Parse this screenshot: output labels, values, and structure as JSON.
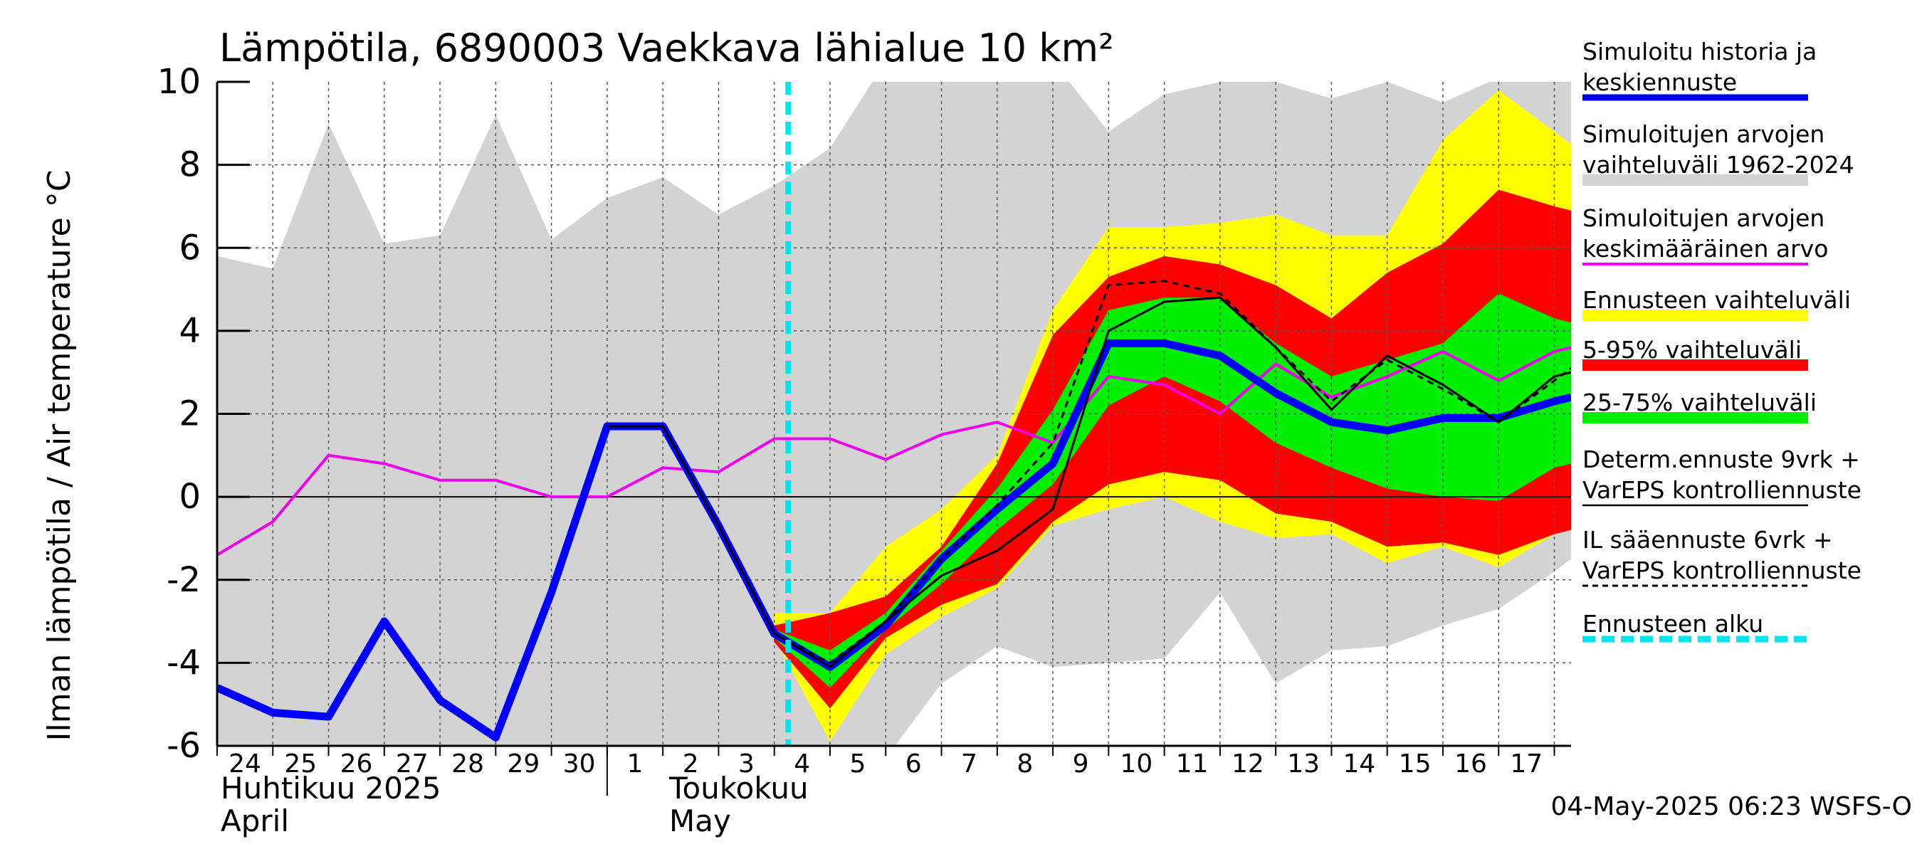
{
  "chart_data": {
    "type": "area",
    "title": "Lämpötila, 6890003 Vaekkava lähialue 10 km²",
    "ylabel": "Ilman lämpötila / Air temperature   °C",
    "ylim": [
      -6,
      10
    ],
    "yticks": [
      -6,
      -4,
      -2,
      0,
      2,
      4,
      6,
      8,
      10
    ],
    "xlim": [
      0,
      24.3
    ],
    "x_day_labels": [
      "24",
      "25",
      "26",
      "27",
      "28",
      "29",
      "30",
      "1",
      "2",
      "3",
      "4",
      "5",
      "6",
      "7",
      "8",
      "9",
      "10",
      "11",
      "12",
      "13",
      "14",
      "15",
      "16",
      "17"
    ],
    "month_labels": {
      "april_fi": "Huhtikuu  2025",
      "april_en": "April",
      "may_fi": "Toukokuu",
      "may_en": "May"
    },
    "forecast_start_x": 10.25,
    "footer": "04-May-2025 06:23 WSFS-O",
    "colors": {
      "history_band": "#d3d3d3",
      "forecast_range": "#ffff00",
      "p5_95": "#ff0000",
      "p25_75": "#00ee00",
      "median": "#0000ff",
      "mean": "#ee00ee",
      "determ": "#000000",
      "forecast_start": "#00e5ee"
    },
    "legend": [
      {
        "label": "Simuloitu historia ja keskiennuste",
        "lines": [
          "Simuloitu historia ja",
          "keskiennuste"
        ],
        "style": "line",
        "color": "#0000ff"
      },
      {
        "label": "Simuloitujen arvojen vaihteluväli 1962-2024",
        "lines": [
          "Simuloitujen arvojen",
          "vaihteluväli 1962-2024"
        ],
        "style": "band",
        "color": "#d3d3d3"
      },
      {
        "label": "Simuloitujen arvojen keskimääräinen arvo",
        "lines": [
          "Simuloitujen arvojen",
          "keskimääräinen arvo"
        ],
        "style": "line",
        "color": "#ee00ee"
      },
      {
        "label": "Ennusteen vaihteluväli",
        "lines": [
          "Ennusteen vaihteluväli"
        ],
        "style": "band",
        "color": "#ffff00"
      },
      {
        "label": "5-95% vaihteluväli",
        "lines": [
          "5-95% vaihteluväli"
        ],
        "style": "band",
        "color": "#ff0000"
      },
      {
        "label": "25-75% vaihteluväli",
        "lines": [
          "25-75% vaihteluväli"
        ],
        "style": "band",
        "color": "#00ee00"
      },
      {
        "label": "Determ.ennuste 9vrk + VarEPS kontrolliennuste",
        "lines": [
          "Determ.ennuste 9vrk +",
          "VarEPS kontrolliennuste"
        ],
        "style": "thinline",
        "color": "#000000"
      },
      {
        "label": "IL sääennuste 6vrk + VarEPS kontrolliennuste",
        "lines": [
          "IL sääennuste 6vrk  +",
          "  VarEPS kontrolliennuste"
        ],
        "style": "dashed",
        "color": "#000000"
      },
      {
        "label": "Ennusteen alku",
        "lines": [
          "Ennusteen alku"
        ],
        "style": "cyan-dashed",
        "color": "#00e5ee"
      }
    ],
    "series": [
      {
        "name": "history_band",
        "x": [
          0,
          1,
          2,
          3,
          4,
          5,
          6,
          7,
          8,
          9,
          10,
          11,
          12,
          13,
          14,
          15,
          16,
          17,
          18,
          19,
          20,
          21,
          22,
          23,
          24,
          24.3
        ],
        "upper": [
          5.8,
          5.5,
          9.0,
          6.1,
          6.3,
          9.2,
          6.2,
          7.2,
          7.7,
          6.8,
          7.5,
          8.4,
          10.5,
          10.5,
          10.5,
          10.5,
          8.8,
          9.7,
          10.0,
          10.0,
          9.6,
          10.0,
          9.5,
          10.1,
          10.4,
          10.3
        ],
        "lower": [
          -6.3,
          -6.3,
          -6.3,
          -6.3,
          -6.3,
          -6.3,
          -6.3,
          -6.3,
          -6.3,
          -6.3,
          -6.3,
          -6.3,
          -6.3,
          -4.5,
          -3.6,
          -4.1,
          -4.0,
          -3.9,
          -2.3,
          -4.5,
          -3.7,
          -3.6,
          -3.1,
          -2.7,
          -1.8,
          -1.5
        ]
      },
      {
        "name": "forecast_range",
        "x": [
          10,
          11,
          12,
          13,
          14,
          15,
          16,
          17,
          18,
          19,
          20,
          21,
          22,
          23,
          24,
          24.3
        ],
        "upper": [
          -2.8,
          -2.8,
          -1.2,
          -0.3,
          1.0,
          4.5,
          6.5,
          6.5,
          6.6,
          6.8,
          6.3,
          6.3,
          8.6,
          9.8,
          8.8,
          8.5
        ],
        "lower": [
          -3.4,
          -5.9,
          -3.8,
          -2.9,
          -2.2,
          -0.7,
          -0.3,
          0.0,
          -0.6,
          -1.0,
          -0.9,
          -1.6,
          -1.2,
          -1.7,
          -0.9,
          -0.8
        ]
      },
      {
        "name": "p5_95",
        "x": [
          10,
          11,
          12,
          13,
          14,
          15,
          16,
          17,
          18,
          19,
          20,
          21,
          22,
          23,
          24,
          24.3
        ],
        "upper": [
          -3.1,
          -2.8,
          -2.4,
          -1.2,
          0.8,
          3.9,
          5.3,
          5.8,
          5.6,
          5.1,
          4.3,
          5.4,
          6.1,
          7.4,
          7.0,
          6.9
        ],
        "lower": [
          -3.5,
          -5.1,
          -3.4,
          -2.6,
          -2.1,
          -0.6,
          0.3,
          0.6,
          0.4,
          -0.4,
          -0.6,
          -1.2,
          -1.1,
          -1.4,
          -0.9,
          -0.8
        ]
      },
      {
        "name": "p25_75",
        "x": [
          10,
          11,
          12,
          13,
          14,
          15,
          16,
          17,
          18,
          19,
          20,
          21,
          22,
          23,
          24,
          24.3
        ],
        "upper": [
          -3.2,
          -3.7,
          -2.8,
          -1.3,
          0.2,
          2.1,
          4.5,
          4.8,
          4.8,
          3.7,
          2.9,
          3.3,
          3.7,
          4.9,
          4.3,
          4.2
        ],
        "lower": [
          -3.4,
          -4.6,
          -3.2,
          -2.1,
          -0.8,
          0.3,
          2.2,
          2.9,
          2.3,
          1.3,
          0.7,
          0.2,
          0.0,
          -0.1,
          0.7,
          0.8
        ]
      },
      {
        "name": "mean",
        "x": [
          0,
          1,
          2,
          3,
          4,
          5,
          6,
          7,
          8,
          9,
          10,
          11,
          12,
          13,
          14,
          15,
          16,
          17,
          18,
          19,
          20,
          21,
          22,
          23,
          24,
          24.3
        ],
        "values": [
          -1.4,
          -0.6,
          1.0,
          0.8,
          0.4,
          0.4,
          0.0,
          0.0,
          0.7,
          0.6,
          1.4,
          1.4,
          0.9,
          1.5,
          1.8,
          1.3,
          2.9,
          2.7,
          2.0,
          3.2,
          2.4,
          2.9,
          3.5,
          2.8,
          3.5,
          3.6
        ]
      },
      {
        "name": "median",
        "x": [
          0,
          1,
          2,
          3,
          4,
          5,
          6,
          7,
          8,
          9,
          10,
          11,
          12,
          13,
          14,
          15,
          16,
          17,
          18,
          19,
          20,
          21,
          22,
          23,
          24,
          24.3
        ],
        "values": [
          -4.6,
          -5.2,
          -5.3,
          -3.0,
          -4.9,
          -5.8,
          -2.3,
          1.7,
          1.7,
          -0.7,
          -3.3,
          -4.1,
          -3.1,
          -1.5,
          -0.3,
          0.8,
          3.7,
          3.7,
          3.4,
          2.5,
          1.8,
          1.6,
          1.9,
          1.9,
          2.3,
          2.4
        ]
      },
      {
        "name": "determ",
        "x": [
          7,
          8,
          9,
          10,
          11,
          12,
          13,
          14,
          15,
          16,
          17,
          18,
          19,
          20,
          21,
          22,
          23,
          24,
          24.3
        ],
        "values": [
          1.7,
          1.7,
          -0.7,
          -3.3,
          -4.1,
          -3.0,
          -1.9,
          -1.3,
          -0.3,
          4.0,
          4.7,
          4.8,
          3.6,
          2.1,
          3.4,
          2.7,
          1.8,
          2.9,
          3.0
        ]
      },
      {
        "name": "il_forecast",
        "x": [
          7,
          8,
          9,
          10,
          11,
          12,
          13,
          14,
          15,
          16,
          17,
          18,
          19,
          20,
          21,
          22,
          23,
          24,
          24.3
        ],
        "values": [
          1.7,
          1.7,
          -0.7,
          -3.3,
          -4.0,
          -3.0,
          -1.5,
          -0.2,
          1.3,
          5.1,
          5.2,
          4.9,
          3.6,
          2.3,
          3.3,
          2.6,
          1.8,
          2.8,
          3.1
        ]
      }
    ]
  }
}
